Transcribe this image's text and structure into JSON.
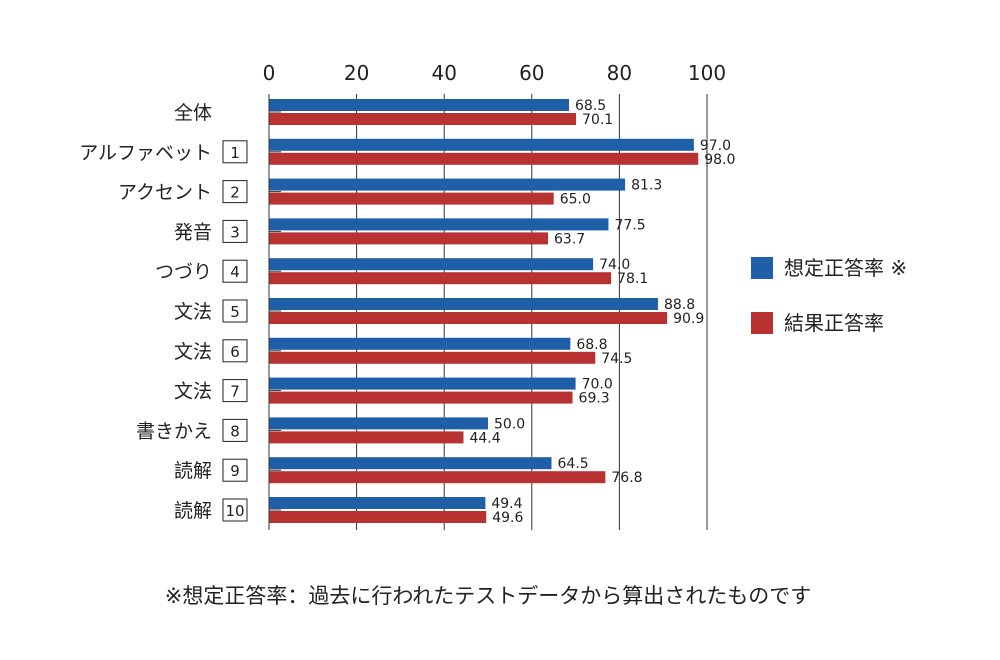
{
  "chart_data": {
    "type": "bar",
    "orientation": "horizontal",
    "categories": [
      {
        "label": "全体",
        "number": ""
      },
      {
        "label": "アルファベット",
        "number": "1"
      },
      {
        "label": "アクセント",
        "number": "2"
      },
      {
        "label": "発音",
        "number": "3"
      },
      {
        "label": "つづり",
        "number": "4"
      },
      {
        "label": "文法",
        "number": "5"
      },
      {
        "label": "文法",
        "number": "6"
      },
      {
        "label": "文法",
        "number": "7"
      },
      {
        "label": "書きかえ",
        "number": "8"
      },
      {
        "label": "読解",
        "number": "9"
      },
      {
        "label": "読解",
        "number": "10"
      }
    ],
    "series": [
      {
        "name": "想定正答率 ※",
        "color": "#1f5fa8",
        "values": [
          68.5,
          97.0,
          81.3,
          77.5,
          74.0,
          88.8,
          68.8,
          70.0,
          50.0,
          64.5,
          49.4
        ],
        "labels": [
          "68.5",
          "97.0",
          "81.3",
          "77.5",
          "74.0",
          "88.8",
          "68.8",
          "70.0",
          "50.0",
          "64.5",
          "49.4"
        ]
      },
      {
        "name": "結果正答率",
        "color": "#b83232",
        "values": [
          70.1,
          98.0,
          65.0,
          63.7,
          78.1,
          90.9,
          74.5,
          69.3,
          44.4,
          76.8,
          49.6
        ],
        "labels": [
          "70.1",
          "98.0",
          "65.0",
          "63.7",
          "78.1",
          "90.9",
          "74.5",
          "69.3",
          "44.4",
          "76.8",
          "49.6"
        ]
      }
    ],
    "xlim": [
      0,
      100
    ],
    "xticks": [
      "0",
      "20",
      "40",
      "60",
      "80",
      "100"
    ],
    "grid": true,
    "legend_position": "right",
    "title": "",
    "xlabel": "",
    "ylabel": ""
  },
  "footnote": "※想定正答率：過去に行われたテストデータから算出されたものです"
}
